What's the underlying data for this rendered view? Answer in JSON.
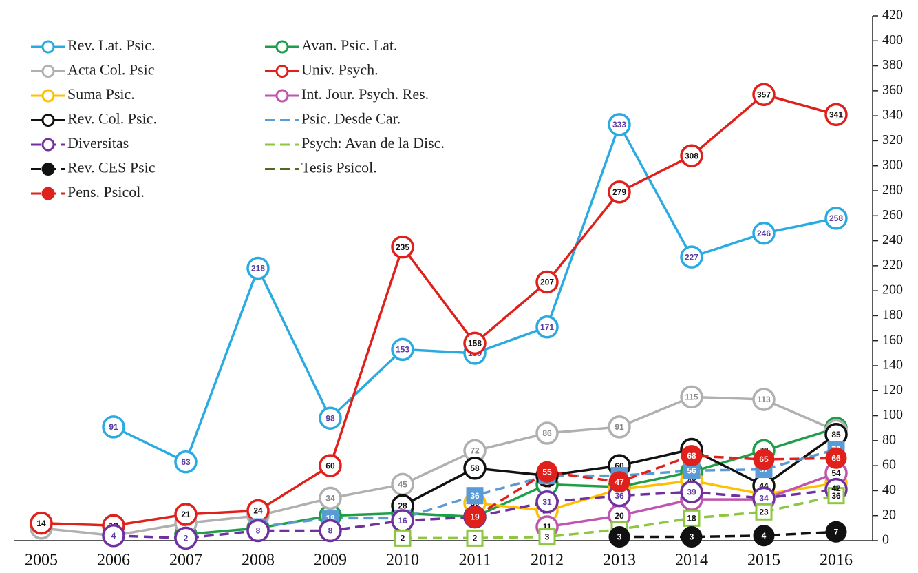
{
  "chart_data": {
    "type": "line",
    "categories": [
      "2005",
      "2006",
      "2007",
      "2008",
      "2009",
      "2010",
      "2011",
      "2012",
      "2013",
      "2014",
      "2015",
      "2016"
    ],
    "ylim": [
      0,
      420
    ],
    "yticks": [
      0,
      20,
      40,
      60,
      80,
      100,
      120,
      140,
      160,
      180,
      200,
      220,
      240,
      260,
      280,
      300,
      320,
      340,
      360,
      380,
      400,
      420
    ],
    "series": [
      {
        "name": "Rev. Lat. Psic.",
        "color": "#29abe2",
        "dash": "solid",
        "marker": "circle-open",
        "values": [
          null,
          91,
          63,
          218,
          98,
          153,
          150,
          171,
          333,
          227,
          246,
          258
        ]
      },
      {
        "name": "Avan. Psic. Lat.",
        "color": "#1e9e48",
        "dash": "solid",
        "marker": "circle-open",
        "values": [
          null,
          null,
          5,
          10,
          20,
          22,
          19,
          45,
          43,
          55,
          72,
          90
        ]
      },
      {
        "name": "Acta Col. Psic",
        "color": "#b0b0b0",
        "dash": "solid",
        "marker": "circle-open",
        "values": [
          10,
          4,
          14,
          20,
          34,
          45,
          72,
          86,
          91,
          115,
          113,
          88
        ]
      },
      {
        "name": "Univ. Psych.",
        "color": "#e0201b",
        "dash": "solid",
        "marker": "circle-open",
        "values": [
          14,
          12,
          21,
          24,
          60,
          235,
          158,
          207,
          279,
          308,
          357,
          341
        ]
      },
      {
        "name": "Suma Psic.",
        "color": "#ffc000",
        "dash": "solid",
        "marker": "circle-open",
        "values": [
          null,
          null,
          null,
          null,
          null,
          null,
          30,
          24,
          41,
          48,
          37,
          46
        ]
      },
      {
        "name": "Int. Jour. Psych. Res.",
        "color": "#c055b0",
        "dash": "solid",
        "marker": "circle-open",
        "values": [
          null,
          null,
          null,
          null,
          null,
          null,
          null,
          11,
          20,
          33,
          33,
          54
        ]
      },
      {
        "name": "Rev. Col. Psic.",
        "color": "#111111",
        "dash": "solid",
        "marker": "circle-open",
        "values": [
          null,
          null,
          null,
          null,
          null,
          28,
          58,
          52,
          60,
          73,
          44,
          85
        ]
      },
      {
        "name": "Psic. Desde Car.",
        "color": "#5b9bd5",
        "dash": "dashed",
        "marker": "square",
        "values": [
          null,
          null,
          null,
          11,
          18,
          18,
          36,
          52,
          52,
          56,
          57,
          73
        ]
      },
      {
        "name": "Diversitas",
        "color": "#7030a0",
        "dash": "dashed",
        "marker": "circle-open",
        "values": [
          null,
          4,
          2,
          8,
          8,
          16,
          19,
          31,
          36,
          39,
          34,
          41
        ]
      },
      {
        "name": "Psych: Avan de la Disc.",
        "color": "#8dc63f",
        "dash": "dashed",
        "marker": "square",
        "values": [
          null,
          null,
          null,
          null,
          null,
          2,
          2,
          3,
          9,
          18,
          23,
          36
        ]
      },
      {
        "name": "Rev. CES Psic",
        "color": "#111111",
        "dash": "dashed",
        "marker": "circle-filled",
        "values": [
          null,
          null,
          null,
          null,
          null,
          null,
          null,
          null,
          3,
          3,
          4,
          7
        ]
      },
      {
        "name": "Tesis Psicol.",
        "color": "#4e6b1e",
        "dash": "dashed",
        "marker": "none",
        "values": [
          null,
          null,
          null,
          null,
          null,
          null,
          null,
          null,
          null,
          null,
          null,
          42
        ]
      },
      {
        "name": "Pens. Psicol.",
        "color": "#e0201b",
        "dash": "dashed",
        "marker": "circle-filled",
        "values": [
          null,
          null,
          null,
          null,
          null,
          null,
          19,
          55,
          47,
          68,
          65,
          66
        ]
      }
    ]
  }
}
